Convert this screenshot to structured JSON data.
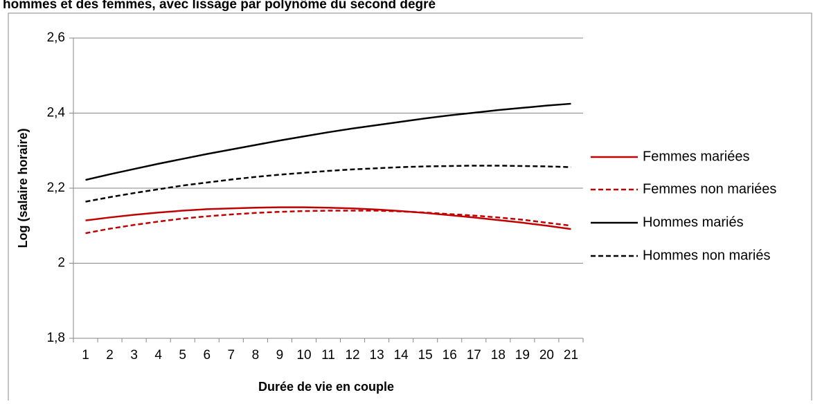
{
  "chart_data": {
    "type": "line",
    "title": "hommes et des femmes, avec lissage par polynôme du second degré",
    "xlabel": "Durée de vie en couple",
    "ylabel": "Log (salaire horaire)",
    "ylim": [
      1.8,
      2.6
    ],
    "yticks": [
      "1,8",
      "2",
      "2,2",
      "2,4",
      "2,6"
    ],
    "ytick_values": [
      1.8,
      2.0,
      2.2,
      2.4,
      2.6
    ],
    "categories": [
      "1",
      "2",
      "3",
      "4",
      "5",
      "6",
      "7",
      "8",
      "9",
      "10",
      "11",
      "12",
      "13",
      "14",
      "15",
      "16",
      "17",
      "18",
      "19",
      "20",
      "21"
    ],
    "grid": "horizontal",
    "legend_position": "right",
    "series": [
      {
        "name": "Femmes mariées",
        "color": "#c00000",
        "dash": "solid",
        "values": [
          2.114,
          2.122,
          2.129,
          2.135,
          2.14,
          2.144,
          2.146,
          2.148,
          2.149,
          2.149,
          2.148,
          2.146,
          2.143,
          2.139,
          2.134,
          2.128,
          2.122,
          2.115,
          2.108,
          2.1,
          2.091
        ]
      },
      {
        "name": "Femmes non mariées",
        "color": "#c00000",
        "dash": "dashed",
        "values": [
          2.08,
          2.092,
          2.102,
          2.111,
          2.119,
          2.125,
          2.13,
          2.134,
          2.137,
          2.139,
          2.14,
          2.14,
          2.14,
          2.138,
          2.135,
          2.131,
          2.127,
          2.122,
          2.116,
          2.108,
          2.1
        ]
      },
      {
        "name": "Hommes mariés",
        "color": "#000000",
        "dash": "solid",
        "values": [
          2.222,
          2.237,
          2.251,
          2.265,
          2.278,
          2.291,
          2.303,
          2.315,
          2.327,
          2.338,
          2.349,
          2.359,
          2.368,
          2.377,
          2.386,
          2.394,
          2.401,
          2.408,
          2.414,
          2.42,
          2.425
        ]
      },
      {
        "name": "Hommes non mariés",
        "color": "#000000",
        "dash": "dashed",
        "values": [
          2.164,
          2.176,
          2.187,
          2.197,
          2.207,
          2.215,
          2.223,
          2.23,
          2.236,
          2.241,
          2.246,
          2.25,
          2.253,
          2.256,
          2.258,
          2.259,
          2.26,
          2.26,
          2.259,
          2.258,
          2.256
        ]
      }
    ]
  }
}
